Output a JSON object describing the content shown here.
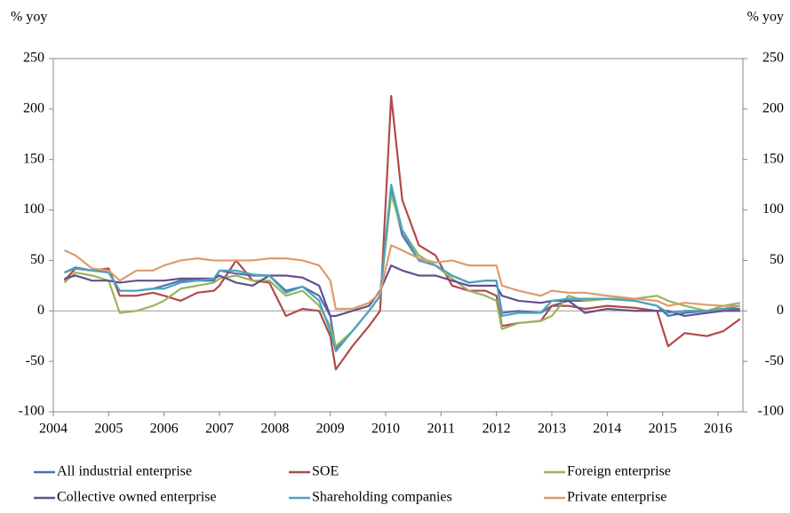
{
  "chart_data": {
    "type": "line",
    "y_label": "% yoy",
    "y2_label": "% yoy",
    "x": [
      2004.2,
      2004.4,
      2004.7,
      2005.0,
      2005.2,
      2005.5,
      2005.8,
      2006.0,
      2006.3,
      2006.6,
      2006.9,
      2007.0,
      2007.3,
      2007.6,
      2007.9,
      2008.2,
      2008.5,
      2008.8,
      2009.0,
      2009.1,
      2009.4,
      2009.7,
      2009.9,
      2010.1,
      2010.3,
      2010.6,
      2010.9,
      2011.2,
      2011.5,
      2011.8,
      2012.0,
      2012.1,
      2012.4,
      2012.8,
      2013.0,
      2013.3,
      2013.6,
      2014.0,
      2014.5,
      2014.9,
      2015.1,
      2015.4,
      2015.8,
      2016.1,
      2016.4
    ],
    "xlim": [
      2004,
      2016.45
    ],
    "xticks": [
      2004,
      2005,
      2006,
      2007,
      2008,
      2009,
      2010,
      2011,
      2012,
      2013,
      2014,
      2015,
      2016
    ],
    "ylim": [
      -100,
      250
    ],
    "yticks": [
      -100,
      -50,
      0,
      50,
      100,
      150,
      200,
      250
    ],
    "y2lim": [
      -100,
      250
    ],
    "y2ticks": [
      -100,
      -50,
      0,
      50,
      100,
      150,
      200,
      250
    ],
    "series": [
      {
        "name": "All industrial enterprise",
        "color": "#4f6fb0",
        "values": [
          38,
          43,
          40,
          38,
          20,
          20,
          22,
          25,
          30,
          30,
          30,
          40,
          37,
          35,
          35,
          20,
          24,
          15,
          -5,
          -38,
          -20,
          0,
          15,
          120,
          75,
          50,
          45,
          35,
          28,
          30,
          30,
          -2,
          0,
          -2,
          5,
          10,
          10,
          12,
          10,
          5,
          -5,
          -2,
          0,
          2,
          2
        ]
      },
      {
        "name": "SOE",
        "color": "#b04a48",
        "values": [
          30,
          42,
          40,
          42,
          15,
          15,
          18,
          15,
          10,
          18,
          20,
          25,
          50,
          30,
          28,
          -5,
          2,
          0,
          -25,
          -58,
          -35,
          -15,
          0,
          213,
          110,
          65,
          55,
          25,
          20,
          20,
          15,
          -15,
          -12,
          -10,
          5,
          5,
          2,
          5,
          3,
          0,
          -35,
          -22,
          -25,
          -20,
          -8
        ]
      },
      {
        "name": "Foreign enterprise",
        "color": "#9bb35e",
        "values": [
          28,
          38,
          35,
          30,
          -2,
          0,
          5,
          10,
          22,
          25,
          28,
          32,
          35,
          30,
          30,
          15,
          20,
          5,
          -15,
          -35,
          -20,
          0,
          15,
          115,
          80,
          55,
          45,
          32,
          20,
          15,
          10,
          -18,
          -12,
          -10,
          -5,
          15,
          10,
          12,
          12,
          15,
          10,
          5,
          0,
          5,
          8
        ]
      },
      {
        "name": "Collective owned enterprise",
        "color": "#654f8c",
        "values": [
          32,
          35,
          30,
          30,
          28,
          30,
          30,
          30,
          32,
          32,
          32,
          35,
          28,
          25,
          35,
          35,
          33,
          25,
          -5,
          -5,
          0,
          5,
          20,
          45,
          40,
          35,
          35,
          30,
          25,
          25,
          25,
          15,
          10,
          8,
          10,
          10,
          -2,
          2,
          0,
          0,
          0,
          -5,
          -2,
          0,
          0
        ]
      },
      {
        "name": "Shareholding companies",
        "color": "#4aa3bd",
        "values": [
          38,
          42,
          40,
          38,
          20,
          20,
          22,
          22,
          28,
          30,
          32,
          40,
          40,
          36,
          35,
          18,
          24,
          10,
          -20,
          -40,
          -20,
          0,
          15,
          125,
          80,
          50,
          45,
          35,
          28,
          30,
          30,
          -5,
          -2,
          -2,
          10,
          12,
          12,
          12,
          10,
          5,
          -2,
          0,
          0,
          2,
          5
        ]
      },
      {
        "name": "Private enterprise",
        "color": "#dd9b6c",
        "values": [
          60,
          55,
          42,
          40,
          30,
          40,
          40,
          45,
          50,
          52,
          50,
          50,
          50,
          50,
          52,
          52,
          50,
          45,
          30,
          2,
          2,
          8,
          18,
          65,
          60,
          52,
          48,
          50,
          45,
          45,
          45,
          25,
          20,
          15,
          20,
          18,
          18,
          15,
          12,
          10,
          5,
          8,
          6,
          5,
          5
        ]
      }
    ]
  }
}
